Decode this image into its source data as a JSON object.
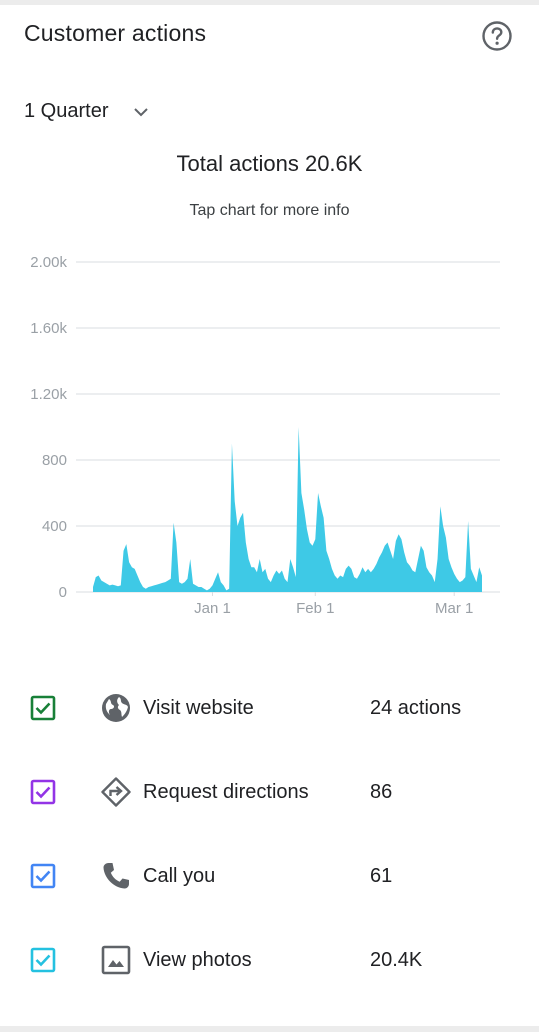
{
  "header": {
    "title": "Customer actions"
  },
  "period": {
    "selected": "1 Quarter"
  },
  "summary": {
    "total_label": "Total actions",
    "total_value": "20.6K",
    "hint": "Tap chart for more info"
  },
  "chart_data": {
    "type": "area",
    "x_labels": [
      "Jan 1",
      "Feb 1",
      "Mar 1"
    ],
    "y_ticks": [
      "0",
      "400",
      "800",
      "1.20k",
      "1.60k",
      "2.00k"
    ],
    "ylim": [
      0,
      2000
    ],
    "grid": true,
    "color": "#3ec9e6",
    "values": [
      30,
      90,
      100,
      70,
      60,
      50,
      40,
      45,
      40,
      35,
      40,
      250,
      290,
      180,
      150,
      140,
      100,
      60,
      30,
      20,
      30,
      35,
      40,
      45,
      50,
      55,
      60,
      70,
      80,
      420,
      300,
      60,
      50,
      60,
      80,
      200,
      50,
      40,
      30,
      30,
      20,
      10,
      20,
      40,
      80,
      120,
      60,
      40,
      10,
      20,
      900,
      550,
      400,
      450,
      480,
      300,
      200,
      150,
      150,
      120,
      200,
      120,
      140,
      80,
      60,
      100,
      130,
      110,
      130,
      80,
      60,
      200,
      150,
      90,
      1000,
      600,
      500,
      380,
      300,
      280,
      320,
      600,
      520,
      450,
      250,
      200,
      140,
      100,
      80,
      100,
      90,
      140,
      160,
      140,
      90,
      80,
      110,
      150,
      120,
      140,
      120,
      140,
      170,
      210,
      240,
      280,
      300,
      250,
      200,
      310,
      350,
      320,
      240,
      180,
      160,
      130,
      120,
      200,
      280,
      250,
      150,
      120,
      100,
      60,
      200,
      520,
      400,
      330,
      200,
      150,
      110,
      80,
      60,
      70,
      90,
      430,
      140,
      100,
      60,
      150,
      100
    ]
  },
  "legend": {
    "rows": [
      {
        "label": "Visit website",
        "value": "24 actions",
        "color": "#188038",
        "icon": "globe-icon"
      },
      {
        "label": "Request directions",
        "value": "86",
        "color": "#9334e6",
        "icon": "directions-icon"
      },
      {
        "label": "Call you",
        "value": "61",
        "color": "#4285f4",
        "icon": "phone-icon"
      },
      {
        "label": "View photos",
        "value": "20.4K",
        "color": "#24c1e0",
        "icon": "photo-icon"
      }
    ]
  }
}
